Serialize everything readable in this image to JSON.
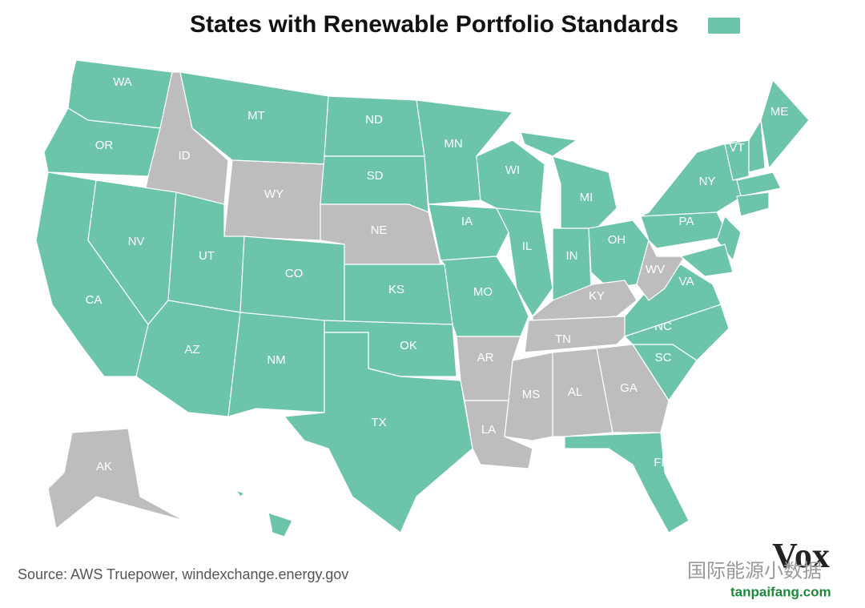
{
  "title": "States with Renewable Portfolio Standards",
  "rps_color": "#6cc5ab",
  "non_rps_color": "#bdbdbd",
  "states": [
    {
      "label": "WA",
      "rps": true
    },
    {
      "label": "OR",
      "rps": true
    },
    {
      "label": "CA",
      "rps": true
    },
    {
      "label": "ID",
      "rps": false
    },
    {
      "label": "MT",
      "rps": true
    },
    {
      "label": "WY",
      "rps": false
    },
    {
      "label": "NV",
      "rps": true
    },
    {
      "label": "UT",
      "rps": true
    },
    {
      "label": "AZ",
      "rps": true
    },
    {
      "label": "CO",
      "rps": true
    },
    {
      "label": "NM",
      "rps": true
    },
    {
      "label": "ND",
      "rps": true
    },
    {
      "label": "SD",
      "rps": true
    },
    {
      "label": "NE",
      "rps": false
    },
    {
      "label": "KS",
      "rps": true
    },
    {
      "label": "OK",
      "rps": true
    },
    {
      "label": "TX",
      "rps": true
    },
    {
      "label": "MN",
      "rps": true
    },
    {
      "label": "IA",
      "rps": true
    },
    {
      "label": "MO",
      "rps": true
    },
    {
      "label": "AR",
      "rps": false
    },
    {
      "label": "LA",
      "rps": false
    },
    {
      "label": "WI",
      "rps": true
    },
    {
      "label": "IL",
      "rps": true
    },
    {
      "label": "MI",
      "rps": true
    },
    {
      "label": "IN",
      "rps": true
    },
    {
      "label": "OH",
      "rps": true
    },
    {
      "label": "KY",
      "rps": false
    },
    {
      "label": "TN",
      "rps": false
    },
    {
      "label": "MS",
      "rps": false
    },
    {
      "label": "AL",
      "rps": false
    },
    {
      "label": "GA",
      "rps": false
    },
    {
      "label": "FL",
      "rps": true
    },
    {
      "label": "SC",
      "rps": true
    },
    {
      "label": "NC",
      "rps": true
    },
    {
      "label": "VA",
      "rps": true
    },
    {
      "label": "WV",
      "rps": false
    },
    {
      "label": "PA",
      "rps": true
    },
    {
      "label": "NY",
      "rps": true
    },
    {
      "label": null,
      "rps": true
    },
    {
      "label": "VT",
      "rps": true
    },
    {
      "label": null,
      "rps": true
    },
    {
      "label": "ME",
      "rps": true
    },
    {
      "label": null,
      "rps": true
    },
    {
      "label": null,
      "rps": true
    },
    {
      "label": null,
      "rps": true
    },
    {
      "label": "AK",
      "rps": false
    },
    {
      "label": null,
      "rps": true
    }
  ],
  "source": "Source: AWS Truepower, windexchange.energy.gov",
  "logo": "Vox",
  "watermark": "国际能源小数据",
  "site": "tanpaifang.com"
}
